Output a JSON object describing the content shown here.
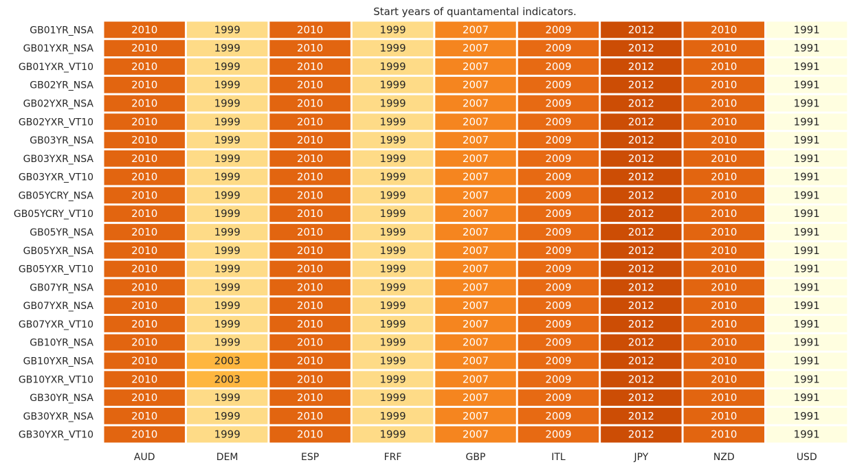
{
  "chart_data": {
    "type": "heatmap",
    "title": "Start years of quantamental indicators.",
    "columns": [
      "AUD",
      "DEM",
      "ESP",
      "FRF",
      "GBP",
      "ITL",
      "JPY",
      "NZD",
      "USD"
    ],
    "rows": [
      "GB01YR_NSA",
      "GB01YXR_NSA",
      "GB01YXR_VT10",
      "GB02YR_NSA",
      "GB02YXR_NSA",
      "GB02YXR_VT10",
      "GB03YR_NSA",
      "GB03YXR_NSA",
      "GB03YXR_VT10",
      "GB05YCRY_NSA",
      "GB05YCRY_VT10",
      "GB05YR_NSA",
      "GB05YXR_NSA",
      "GB05YXR_VT10",
      "GB07YR_NSA",
      "GB07YXR_NSA",
      "GB07YXR_VT10",
      "GB10YR_NSA",
      "GB10YXR_NSA",
      "GB10YXR_VT10",
      "GB30YR_NSA",
      "GB30YXR_NSA",
      "GB30YXR_VT10"
    ],
    "values": [
      [
        2010,
        1999,
        2010,
        1999,
        2007,
        2009,
        2012,
        2010,
        1991
      ],
      [
        2010,
        1999,
        2010,
        1999,
        2007,
        2009,
        2012,
        2010,
        1991
      ],
      [
        2010,
        1999,
        2010,
        1999,
        2007,
        2009,
        2012,
        2010,
        1991
      ],
      [
        2010,
        1999,
        2010,
        1999,
        2007,
        2009,
        2012,
        2010,
        1991
      ],
      [
        2010,
        1999,
        2010,
        1999,
        2007,
        2009,
        2012,
        2010,
        1991
      ],
      [
        2010,
        1999,
        2010,
        1999,
        2007,
        2009,
        2012,
        2010,
        1991
      ],
      [
        2010,
        1999,
        2010,
        1999,
        2007,
        2009,
        2012,
        2010,
        1991
      ],
      [
        2010,
        1999,
        2010,
        1999,
        2007,
        2009,
        2012,
        2010,
        1991
      ],
      [
        2010,
        1999,
        2010,
        1999,
        2007,
        2009,
        2012,
        2010,
        1991
      ],
      [
        2010,
        1999,
        2010,
        1999,
        2007,
        2009,
        2012,
        2010,
        1991
      ],
      [
        2010,
        1999,
        2010,
        1999,
        2007,
        2009,
        2012,
        2010,
        1991
      ],
      [
        2010,
        1999,
        2010,
        1999,
        2007,
        2009,
        2012,
        2010,
        1991
      ],
      [
        2010,
        1999,
        2010,
        1999,
        2007,
        2009,
        2012,
        2010,
        1991
      ],
      [
        2010,
        1999,
        2010,
        1999,
        2007,
        2009,
        2012,
        2010,
        1991
      ],
      [
        2010,
        1999,
        2010,
        1999,
        2007,
        2009,
        2012,
        2010,
        1991
      ],
      [
        2010,
        1999,
        2010,
        1999,
        2007,
        2009,
        2012,
        2010,
        1991
      ],
      [
        2010,
        1999,
        2010,
        1999,
        2007,
        2009,
        2012,
        2010,
        1991
      ],
      [
        2010,
        1999,
        2010,
        1999,
        2007,
        2009,
        2012,
        2010,
        1991
      ],
      [
        2010,
        2003,
        2010,
        1999,
        2007,
        2009,
        2012,
        2010,
        1991
      ],
      [
        2010,
        2003,
        2010,
        1999,
        2007,
        2009,
        2012,
        2010,
        1991
      ],
      [
        2010,
        1999,
        2010,
        1999,
        2007,
        2009,
        2012,
        2010,
        1991
      ],
      [
        2010,
        1999,
        2010,
        1999,
        2007,
        2009,
        2012,
        2010,
        1991
      ],
      [
        2010,
        1999,
        2010,
        1999,
        2007,
        2009,
        2012,
        2010,
        1991
      ]
    ],
    "color_scale": {
      "1991": "#fffee0",
      "1999": "#fedb87",
      "2003": "#feb640",
      "2007": "#f5851f",
      "2009": "#e76a13",
      "2010": "#e26510",
      "2012": "#cc4d05"
    },
    "text_colors": {
      "light": "#ffffff",
      "dark": "#262626"
    },
    "colorbar": false,
    "grid": false
  }
}
